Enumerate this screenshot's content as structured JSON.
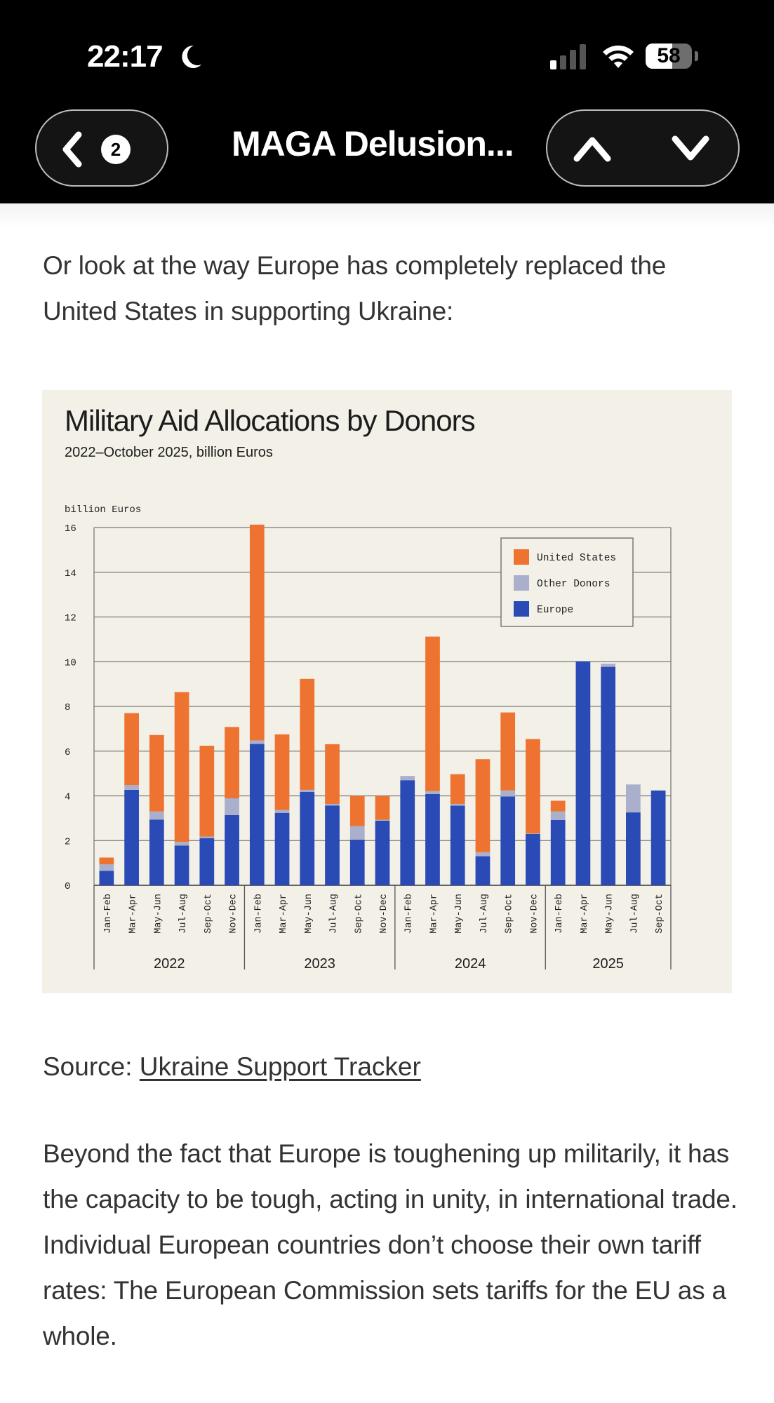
{
  "status_bar": {
    "time": "22:17",
    "battery_percent": "58",
    "battery_level": 0.58,
    "icons": [
      "moon-icon",
      "signal-icon",
      "wifi-icon",
      "battery-icon"
    ]
  },
  "nav": {
    "back_icon": "chevron-left-icon",
    "back_count": "2",
    "title": "MAGA Delusion...",
    "up_icon": "chevron-up-icon",
    "down_icon": "chevron-down-icon"
  },
  "article": {
    "intro": "Or look at the way Europe has completely replaced the United States in supporting Ukraine:",
    "source_label": "Source: ",
    "source_link": "Ukraine Support Tracker",
    "body": "Beyond the fact that Europe is toughening up militarily, it has the capacity to be tough, acting in unity, in international trade. Individual European countries don’t choose their own tariff rates: The European Commission sets tariffs for the EU as a whole."
  },
  "chart_data": {
    "type": "bar",
    "stacked": true,
    "title": "Military Aid Allocations by Donors",
    "subtitle": "2022–October 2025, billion Euros",
    "ylabel": "billion Euros",
    "xlabel": "",
    "ylim": [
      0,
      16
    ],
    "yticks": [
      "0",
      "2",
      "4",
      "6",
      "8",
      "10",
      "12",
      "14",
      "16"
    ],
    "grid": true,
    "legend_position": "top-right",
    "groups": [
      {
        "label": "2022",
        "categories": [
          "Jan-Feb",
          "Mar-Apr",
          "May-Jun",
          "Jul-Aug",
          "Sep-Oct",
          "Nov-Dec"
        ]
      },
      {
        "label": "2023",
        "categories": [
          "Jan-Feb",
          "Mar-Apr",
          "May-Jun",
          "Jul-Aug",
          "Sep-Oct",
          "Nov-Dec"
        ]
      },
      {
        "label": "2024",
        "categories": [
          "Jan-Feb",
          "Mar-Apr",
          "May-Jun",
          "Jul-Aug",
          "Sep-Oct",
          "Nov-Dec"
        ]
      },
      {
        "label": "2025",
        "categories": [
          "Jan-Feb",
          "Mar-Apr",
          "May-Jun",
          "Jul-Aug",
          "Sep-Oct"
        ]
      }
    ],
    "series": [
      {
        "name": "Europe",
        "color": "#2a4ab5",
        "values": [
          0.65,
          4.27,
          2.94,
          1.78,
          2.11,
          3.14,
          6.32,
          3.24,
          4.18,
          3.57,
          2.04,
          2.89,
          4.7,
          4.08,
          3.56,
          1.3,
          3.97,
          2.29,
          2.92,
          10.02,
          9.77,
          3.26,
          4.24
        ]
      },
      {
        "name": "Other Donors",
        "color": "#aab0cc",
        "values": [
          0.29,
          0.21,
          0.36,
          0.16,
          0.07,
          0.75,
          0.16,
          0.13,
          0.09,
          0.07,
          0.61,
          0.04,
          0.19,
          0.13,
          0.08,
          0.18,
          0.27,
          0.03,
          0.38,
          0.0,
          0.14,
          1.25,
          0.0
        ]
      },
      {
        "name": "United States",
        "color": "#ee7330",
        "values": [
          0.3,
          3.22,
          3.42,
          6.7,
          4.06,
          3.19,
          9.65,
          3.38,
          4.96,
          2.67,
          1.34,
          1.06,
          0.0,
          6.91,
          1.33,
          4.16,
          3.49,
          4.22,
          0.48,
          0.0,
          0.0,
          0.0,
          0.0
        ]
      }
    ],
    "legend": [
      "United States",
      "Other Donors",
      "Europe"
    ]
  }
}
